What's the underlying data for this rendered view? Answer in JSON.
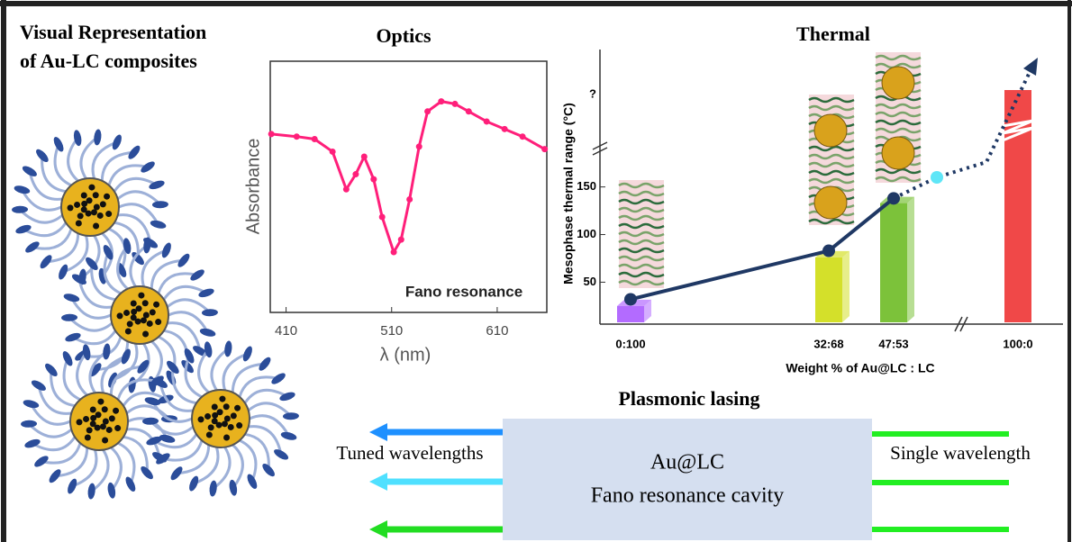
{
  "header": {
    "title_lines": [
      "Visual Representation",
      "of Au-LC composites"
    ]
  },
  "chart_data": [
    {
      "type": "line",
      "title": "Optics",
      "ylabel": "Absorbance",
      "xlabel": "λ (nm)",
      "annotation": "Fano resonance",
      "color": "#ff1f7a",
      "x": [
        396,
        420,
        437,
        454,
        467,
        476,
        484,
        493,
        501,
        512,
        519,
        527,
        536,
        544,
        557,
        570,
        583,
        600,
        617,
        634,
        655
      ],
      "values": [
        0.71,
        0.7,
        0.69,
        0.64,
        0.49,
        0.55,
        0.62,
        0.53,
        0.38,
        0.24,
        0.29,
        0.45,
        0.66,
        0.8,
        0.84,
        0.83,
        0.8,
        0.76,
        0.73,
        0.7,
        0.65
      ],
      "xlim": [
        395,
        657
      ],
      "ylim": [
        0,
        1
      ],
      "xticks": [
        410,
        510,
        610
      ]
    },
    {
      "type": "bar-line",
      "title": "Thermal",
      "ylabel": "Mesophase thermal range (°C)",
      "xlabel": "Weight % of Au@LC : LC",
      "y_break_label": "?",
      "categories": [
        "0:100",
        "32:68",
        "47:53",
        "100:0"
      ],
      "ylim": [
        6,
        195
      ],
      "yticks": [
        50,
        100,
        150
      ],
      "series": [
        {
          "type": "bar",
          "colors": [
            "#b36bff",
            "#d4e02a",
            "#7cc23a",
            "#f04848"
          ],
          "values": [
            25,
            76,
            133,
            null
          ]
        },
        {
          "type": "line",
          "color": "#1f3864",
          "values": [
            32,
            83,
            138,
            null
          ]
        }
      ]
    }
  ],
  "lasing": {
    "title": "Plasmonic lasing",
    "left_label": "Tuned wavelengths",
    "right_label": "Single wavelength",
    "cavity_lines": [
      "Au@LC",
      "Fano resonance cavity"
    ]
  }
}
